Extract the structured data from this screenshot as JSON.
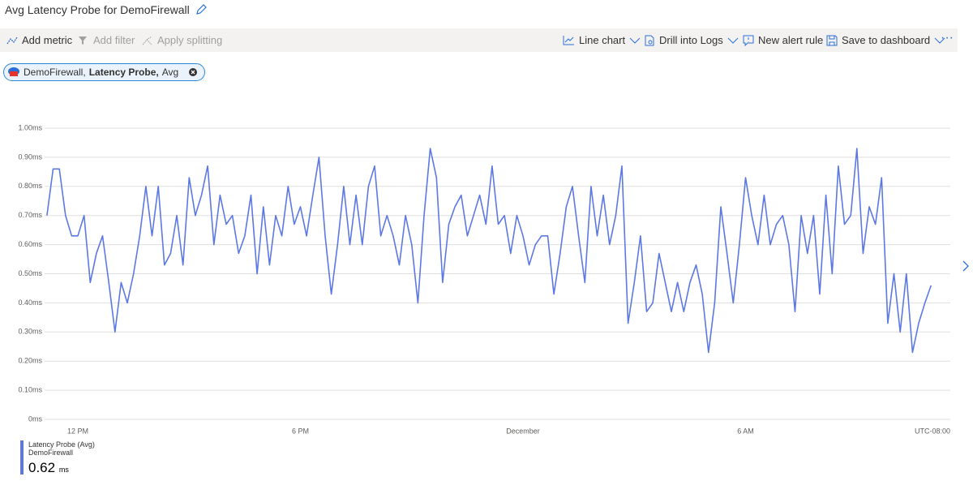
{
  "header": {
    "title": "Avg Latency Probe for DemoFirewall"
  },
  "toolbar": {
    "add_metric": "Add metric",
    "add_filter": "Add filter",
    "apply_splitting": "Apply splitting",
    "line_chart": "Line chart",
    "drill_into_logs": "Drill into Logs",
    "new_alert_rule": "New alert rule",
    "save_to_dashboard": "Save to dashboard"
  },
  "chip": {
    "resource": "DemoFirewall,",
    "metric": "Latency Probe,",
    "aggregation": "Avg"
  },
  "chart_data": {
    "type": "line",
    "categories": [
      null,
      null,
      null,
      null,
      null,
      "12 PM",
      null,
      null,
      null,
      null,
      null,
      null,
      null,
      null,
      null,
      null,
      null,
      null,
      null,
      null,
      null,
      null,
      null,
      null,
      null,
      null,
      null,
      null,
      null,
      null,
      null,
      null,
      null,
      null,
      null,
      null,
      null,
      null,
      null,
      null,
      null,
      "6 PM",
      null,
      null,
      null,
      null,
      null,
      null,
      null,
      null,
      null,
      null,
      null,
      null,
      null,
      null,
      null,
      null,
      null,
      null,
      null,
      null,
      null,
      null,
      null,
      null,
      null,
      null,
      null,
      null,
      null,
      null,
      null,
      null,
      null,
      null,
      null,
      "December",
      null,
      null,
      null,
      null,
      null,
      null,
      null,
      null,
      null,
      null,
      null,
      null,
      null,
      null,
      null,
      null,
      null,
      null,
      null,
      null,
      null,
      null,
      null,
      null,
      null,
      null,
      null,
      null,
      null,
      null,
      null,
      null,
      null,
      null,
      null,
      "6 AM",
      null,
      null,
      null,
      null,
      null,
      null,
      null,
      null,
      null,
      null,
      null,
      null,
      null,
      null,
      null,
      null,
      null,
      null,
      null,
      null,
      null,
      null,
      null,
      null,
      null,
      null,
      null,
      null,
      null,
      null
    ],
    "series": [
      {
        "name": "Latency Probe (Avg)",
        "resource": "DemoFirewall",
        "color": "#5b78e5",
        "values": [
          0.7,
          0.86,
          0.86,
          0.7,
          0.63,
          0.63,
          0.7,
          0.47,
          0.57,
          0.63,
          0.47,
          0.3,
          0.47,
          0.4,
          0.5,
          0.63,
          0.8,
          0.63,
          0.8,
          0.53,
          0.57,
          0.7,
          0.53,
          0.83,
          0.7,
          0.77,
          0.87,
          0.6,
          0.77,
          0.67,
          0.7,
          0.57,
          0.63,
          0.77,
          0.5,
          0.73,
          0.53,
          0.7,
          0.63,
          0.8,
          0.67,
          0.73,
          0.63,
          0.77,
          0.9,
          0.63,
          0.43,
          0.6,
          0.8,
          0.6,
          0.77,
          0.6,
          0.8,
          0.87,
          0.63,
          0.7,
          0.63,
          0.53,
          0.7,
          0.6,
          0.4,
          0.7,
          0.93,
          0.83,
          0.47,
          0.67,
          0.73,
          0.77,
          0.63,
          0.7,
          0.77,
          0.67,
          0.87,
          0.67,
          0.7,
          0.57,
          0.7,
          0.63,
          0.53,
          0.6,
          0.63,
          0.63,
          0.43,
          0.57,
          0.73,
          0.8,
          0.63,
          0.47,
          0.8,
          0.63,
          0.77,
          0.6,
          0.7,
          0.87,
          0.33,
          0.47,
          0.63,
          0.37,
          0.4,
          0.57,
          0.47,
          0.37,
          0.47,
          0.37,
          0.47,
          0.53,
          0.43,
          0.23,
          0.4,
          0.73,
          0.57,
          0.4,
          0.6,
          0.83,
          0.7,
          0.6,
          0.77,
          0.6,
          0.67,
          0.7,
          0.6,
          0.37,
          0.7,
          0.57,
          0.7,
          0.43,
          0.77,
          0.5,
          0.87,
          0.67,
          0.7,
          0.93,
          0.57,
          0.73,
          0.67,
          0.83,
          0.33,
          0.5,
          0.3,
          0.5,
          0.23,
          0.33,
          0.4,
          0.46
        ]
      }
    ],
    "ylim": [
      0,
      1.0
    ],
    "yticks": [
      {
        "value": 0,
        "label": "0ms"
      },
      {
        "value": 0.1,
        "label": "0.10ms"
      },
      {
        "value": 0.2,
        "label": "0.20ms"
      },
      {
        "value": 0.3,
        "label": "0.30ms"
      },
      {
        "value": 0.4,
        "label": "0.40ms"
      },
      {
        "value": 0.5,
        "label": "0.50ms"
      },
      {
        "value": 0.6,
        "label": "0.60ms"
      },
      {
        "value": 0.7,
        "label": "0.70ms"
      },
      {
        "value": 0.8,
        "label": "0.80ms"
      },
      {
        "value": 0.9,
        "label": "0.90ms"
      },
      {
        "value": 1.0,
        "label": "1.00ms"
      }
    ],
    "grid": true,
    "timezone": "UTC-08:00",
    "summary": {
      "value": 0.62,
      "unit": "ms"
    }
  }
}
